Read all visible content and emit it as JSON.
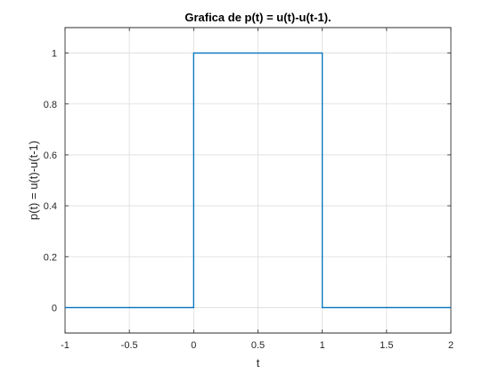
{
  "chart_data": {
    "type": "line",
    "title": "Grafica de  p(t) = u(t)-u(t-1).",
    "xlabel": "t",
    "ylabel": "p(t) = u(t)-u(t-1)",
    "xlim": [
      -1,
      2
    ],
    "ylim": [
      -0.1,
      1.1
    ],
    "grid": true,
    "x_ticks": [
      -1,
      -0.5,
      0,
      0.5,
      1,
      1.5,
      2
    ],
    "x_tick_labels": [
      "-1",
      "-0.5",
      "0",
      "0.5",
      "1",
      "1.5",
      "2"
    ],
    "y_ticks": [
      0,
      0.2,
      0.4,
      0.6,
      0.8,
      1
    ],
    "y_tick_labels": [
      "0",
      "0.2",
      "0.4",
      "0.6",
      "0.8",
      "1"
    ],
    "series": [
      {
        "name": "p(t)",
        "color": "#0072bd",
        "x": [
          -1,
          0,
          0,
          1,
          1,
          2
        ],
        "y": [
          0,
          0,
          1,
          1,
          0,
          0
        ]
      }
    ]
  }
}
